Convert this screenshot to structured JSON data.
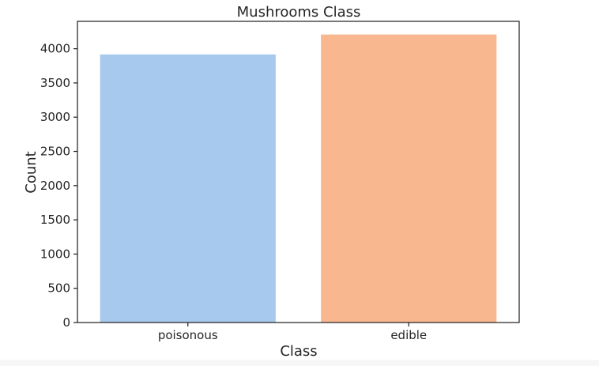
{
  "chart_data": {
    "type": "bar",
    "title": "Mushrooms Class",
    "xlabel": "Class",
    "ylabel": "Count",
    "categories": [
      "poisonous",
      "edible"
    ],
    "values": [
      3916,
      4208
    ],
    "ylim": [
      0,
      4400
    ],
    "yticks": [
      "0",
      "500",
      "1000",
      "1500",
      "2000",
      "2500",
      "3000",
      "3500",
      "4000"
    ],
    "colors": [
      "#a8c9ee",
      "#f9b78f"
    ],
    "grid": false,
    "legend": "none"
  }
}
